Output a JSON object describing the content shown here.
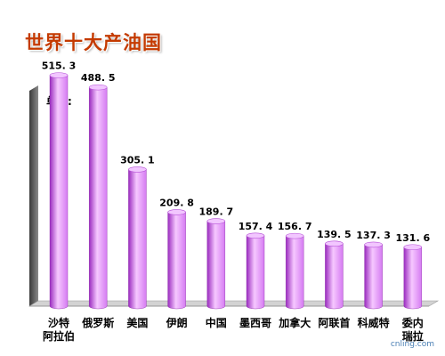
{
  "chart_data": {
    "type": "bar",
    "title": "世界十大产油国",
    "unit_label": "单位:",
    "categories": [
      [
        "沙特",
        "阿拉伯"
      ],
      [
        "俄罗斯"
      ],
      [
        "美国"
      ],
      [
        "伊朗"
      ],
      [
        "中国"
      ],
      [
        "墨西哥"
      ],
      [
        "加拿大"
      ],
      [
        "阿联首"
      ],
      [
        "科威特"
      ],
      [
        "委内",
        "瑞拉"
      ]
    ],
    "values": [
      515.3,
      488.5,
      305.1,
      209.8,
      189.7,
      157.4,
      156.7,
      139.5,
      137.3,
      131.6
    ],
    "value_labels": [
      "515. 3",
      "488. 5",
      "305. 1",
      "209. 8",
      "189. 7",
      "157. 4",
      "156. 7",
      "139. 5",
      "137. 3",
      "131. 6"
    ],
    "ylim": [
      0,
      600
    ],
    "grid": false,
    "legend": "none",
    "colors": {
      "bar_light": "#f6c8ff",
      "bar_mid": "#d57bf2",
      "bar_dark": "#9a2bbf",
      "bar_top": "#f2c6ff",
      "wall": "#555555",
      "floor": "#cfcfcf",
      "title": "#c43a00"
    }
  },
  "watermark": "cnling.com"
}
